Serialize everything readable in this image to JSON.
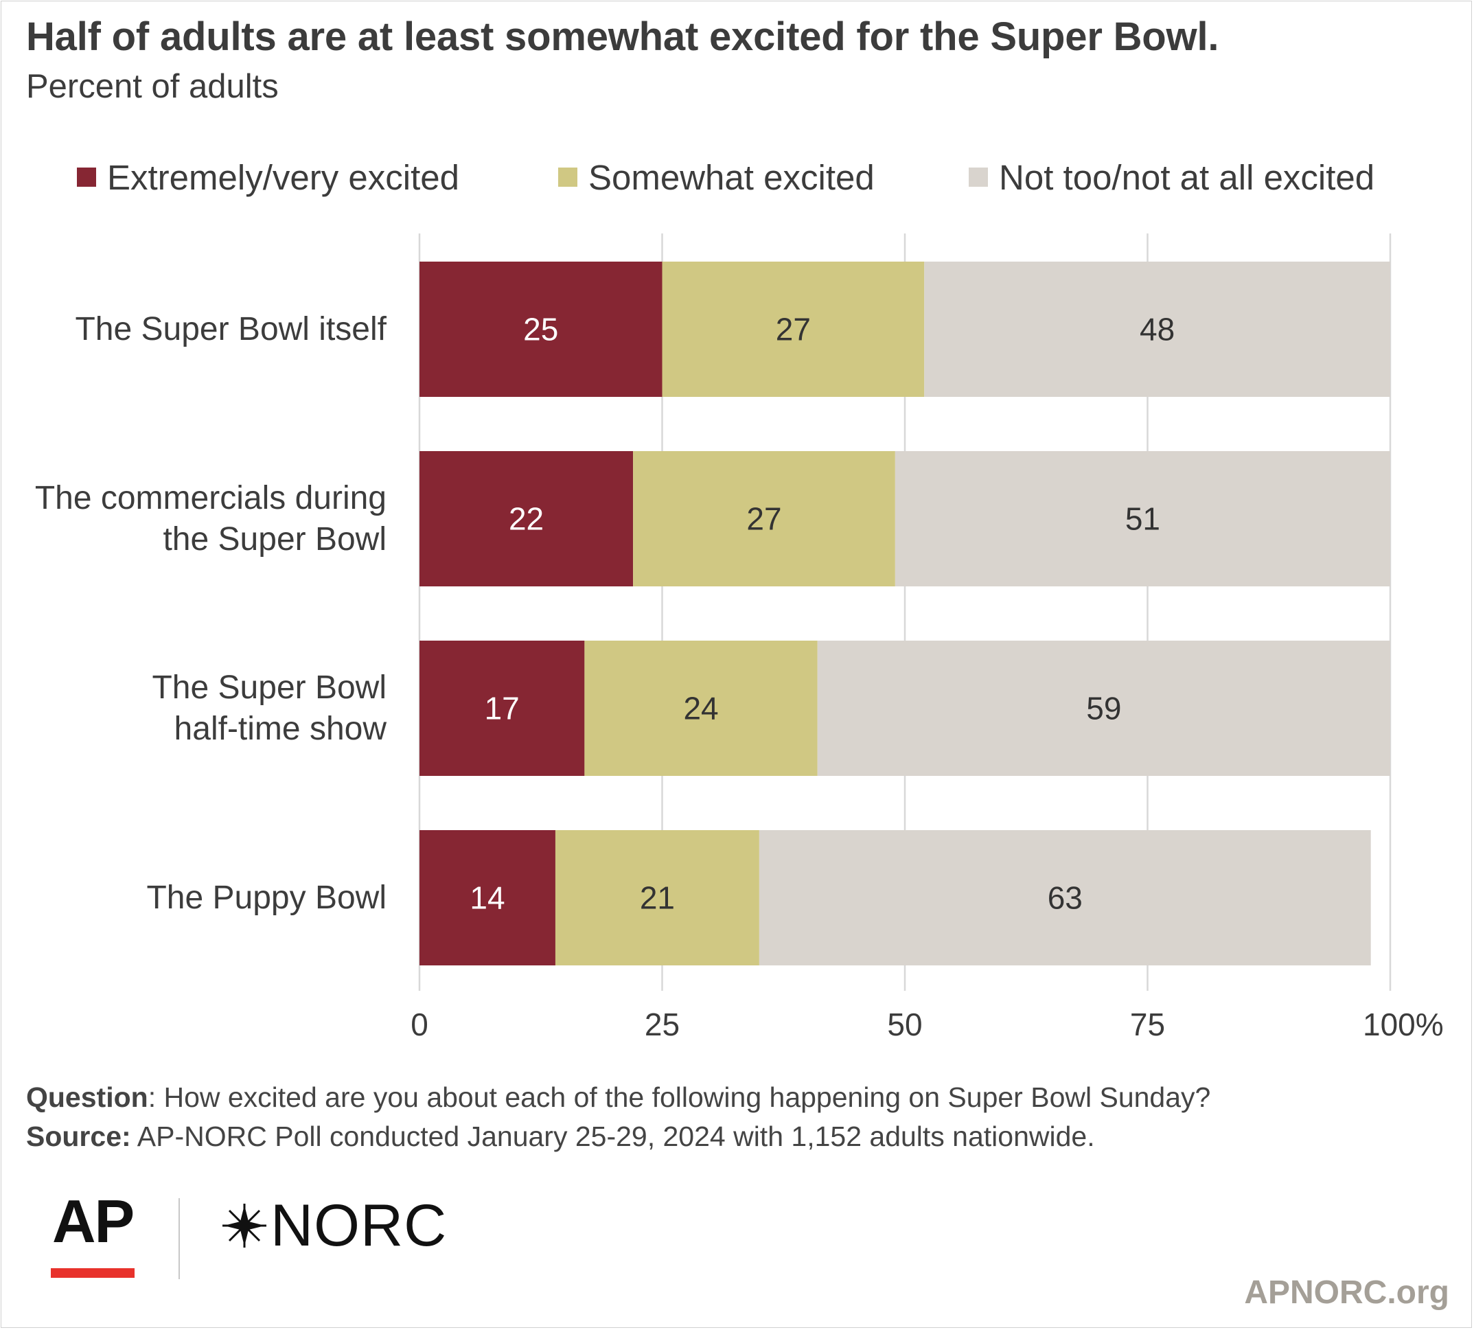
{
  "title": "Half of adults are at least somewhat excited for the Super Bowl.",
  "subtitle": "Percent of adults",
  "legend": [
    {
      "label": "Extremely/very excited",
      "color": "#862633"
    },
    {
      "label": "Somewhat excited",
      "color": "#d0c883"
    },
    {
      "label": "Not too/not at all excited",
      "color": "#d9d4ce"
    }
  ],
  "chart_data": {
    "type": "bar",
    "orientation": "horizontal",
    "stacked": true,
    "title": "Half of adults are at least somewhat excited for the Super Bowl.",
    "subtitle": "Percent of adults",
    "categories": [
      [
        "The Super Bowl itself"
      ],
      [
        "The commercials during",
        "the Super Bowl"
      ],
      [
        "The Super Bowl",
        "half-time show"
      ],
      [
        "The Puppy Bowl"
      ]
    ],
    "series": [
      {
        "name": "Extremely/very excited",
        "color": "#862633",
        "label_color": "#ffffff",
        "values": [
          25,
          22,
          17,
          14
        ]
      },
      {
        "name": "Somewhat excited",
        "color": "#d0c883",
        "label_color": "#333333",
        "values": [
          27,
          27,
          24,
          21
        ]
      },
      {
        "name": "Not too/not at all excited",
        "color": "#d9d4ce",
        "label_color": "#333333",
        "values": [
          48,
          51,
          59,
          63
        ]
      }
    ],
    "xlim": [
      0,
      100
    ],
    "xticks": [
      0,
      25,
      50,
      75,
      100
    ],
    "xtick_labels": [
      "0",
      "25",
      "50",
      "75",
      "100%"
    ],
    "grid": true,
    "legend_position": "top"
  },
  "notes": {
    "question_label": "Question",
    "question_text": ": How excited are you about each of the following happening on Super Bowl Sunday?",
    "source_label": "Source:",
    "source_text": " AP-NORC Poll conducted January 25-29, 2024 with 1,152 adults nationwide."
  },
  "logos": {
    "ap": "AP",
    "norc": "NORC",
    "site": "APNORC.org"
  }
}
